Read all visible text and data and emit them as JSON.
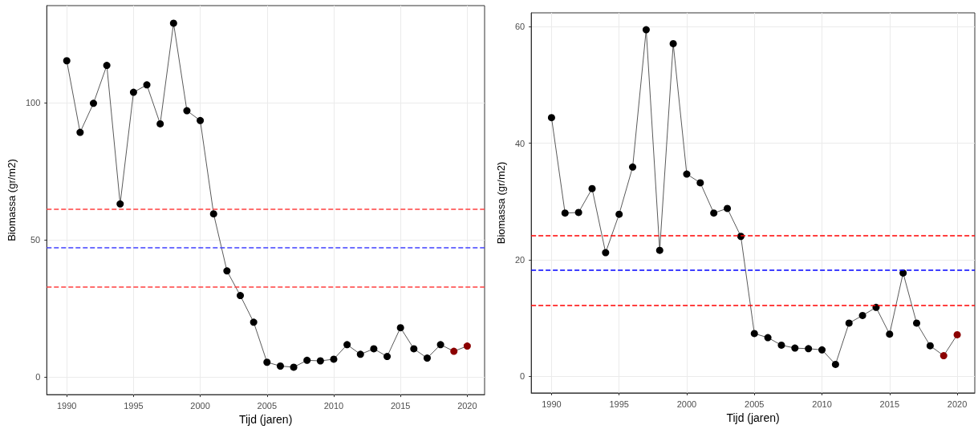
{
  "chart_data": [
    {
      "type": "line",
      "xlabel": "Tijd (jaren)",
      "ylabel": "Biomassa (gr/m2)",
      "x": [
        1990,
        1991,
        1992,
        1993,
        1994,
        1995,
        1996,
        1997,
        1998,
        1999,
        2000,
        2001,
        2002,
        2003,
        2004,
        2005,
        2006,
        2007,
        2008,
        2009,
        2010,
        2011,
        2012,
        2013,
        2014,
        2015,
        2016,
        2017,
        2018,
        2019,
        2020
      ],
      "series": [
        {
          "color": "#000000",
          "colors": [
            "#000000",
            "#000000",
            "#000000",
            "#000000",
            "#000000",
            "#000000",
            "#000000",
            "#000000",
            "#000000",
            "#000000",
            "#000000",
            "#000000",
            "#000000",
            "#000000",
            "#000000",
            "#000000",
            "#000000",
            "#000000",
            "#000000",
            "#000000",
            "#000000",
            "#000000",
            "#000000",
            "#000000",
            "#000000",
            "#000000",
            "#000000",
            "#000000",
            "#000000",
            "#8b0000",
            "#8b0000"
          ],
          "values": [
            115.3,
            89.2,
            99.8,
            113.6,
            63.1,
            103.8,
            106.5,
            92.3,
            129,
            97.1,
            93.5,
            59.5,
            38.7,
            29.7,
            20,
            5.4,
            4,
            3.6,
            6.1,
            5.9,
            6.5,
            11.8,
            8.3,
            10.3,
            7.5,
            18,
            10.3,
            6.9,
            11.8,
            9.4,
            11.3
          ]
        }
      ],
      "xlim": [
        1988.5,
        2021.3
      ],
      "xticks": [
        1990,
        1995,
        2000,
        2005,
        2010,
        2015,
        2020
      ],
      "ylim": [
        -6.4,
        135.4
      ],
      "yticks": [
        0,
        50,
        100
      ],
      "ref_lines": [
        {
          "axis": "y",
          "value": 61.3,
          "color": "#ff4040",
          "line_style": "dashed"
        },
        {
          "axis": "y",
          "value": 47.2,
          "color": "#4040ff",
          "line_style": "dashed"
        },
        {
          "axis": "y",
          "value": 32.9,
          "color": "#ff4040",
          "line_style": "dashed"
        }
      ],
      "grid": true,
      "marker": "circle",
      "line_style": "solid"
    },
    {
      "type": "line",
      "xlabel": "Tijd (jaren)",
      "ylabel": "Biomassa (gr/m2)",
      "x": [
        1990,
        1991,
        1992,
        1993,
        1994,
        1995,
        1996,
        1997,
        1998,
        1999,
        2000,
        2001,
        2002,
        2003,
        2004,
        2005,
        2006,
        2007,
        2008,
        2009,
        2010,
        2011,
        2012,
        2013,
        2014,
        2015,
        2016,
        2017,
        2018,
        2019,
        2020
      ],
      "series": [
        {
          "color": "#000000",
          "colors": [
            "#000000",
            "#000000",
            "#000000",
            "#000000",
            "#000000",
            "#000000",
            "#000000",
            "#000000",
            "#000000",
            "#000000",
            "#000000",
            "#000000",
            "#000000",
            "#000000",
            "#000000",
            "#000000",
            "#000000",
            "#000000",
            "#000000",
            "#000000",
            "#000000",
            "#000000",
            "#000000",
            "#000000",
            "#000000",
            "#000000",
            "#000000",
            "#000000",
            "#000000",
            "#8b0000",
            "#8b0000"
          ],
          "values": [
            44.4,
            28,
            28.1,
            32.2,
            21.2,
            27.8,
            35.9,
            59.5,
            21.6,
            57.1,
            34.7,
            33.2,
            28,
            28.8,
            24,
            7.3,
            6.6,
            5.3,
            4.8,
            4.7,
            4.5,
            2,
            9.1,
            10.4,
            11.8,
            7.2,
            17.7,
            9.1,
            5.2,
            3.5,
            7.1
          ]
        }
      ],
      "xlim": [
        1988.5,
        2021.3
      ],
      "xticks": [
        1990,
        1995,
        2000,
        2005,
        2010,
        2015,
        2020
      ],
      "ylim": [
        -2.9,
        62.4
      ],
      "yticks": [
        0,
        20,
        40,
        60
      ],
      "ref_lines": [
        {
          "axis": "y",
          "value": 24.2,
          "color": "#ff0000",
          "line_style": "dashed"
        },
        {
          "axis": "y",
          "value": 18.2,
          "color": "#0000ff",
          "line_style": "dashed"
        },
        {
          "axis": "y",
          "value": 12.1,
          "color": "#ff0000",
          "line_style": "dashed"
        }
      ],
      "grid": true,
      "marker": "circle",
      "line_style": "solid"
    }
  ]
}
